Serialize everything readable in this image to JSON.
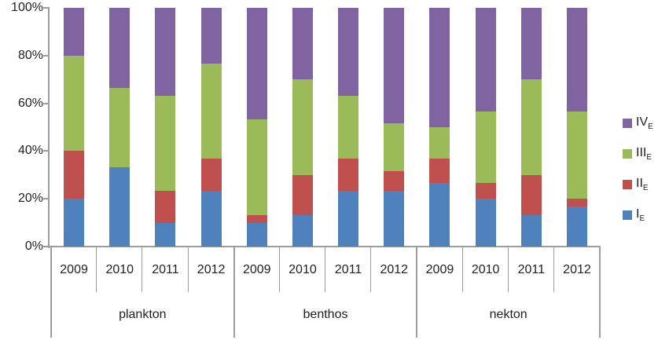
{
  "chart_data": {
    "type": "bar",
    "variant": "stacked-100-percent",
    "title": "",
    "grid": false,
    "y_axis": {
      "tick_labels": [
        "100%",
        "80%",
        "60%",
        "40%",
        "20%",
        "0%"
      ],
      "min": 0,
      "max": 100,
      "unit": "%"
    },
    "x_axis": {
      "groups": [
        "plankton",
        "benthos",
        "nekton"
      ],
      "years_per_group": [
        "2009",
        "2010",
        "2011",
        "2012"
      ]
    },
    "categories": [
      {
        "group": "plankton",
        "year": "2009"
      },
      {
        "group": "plankton",
        "year": "2010"
      },
      {
        "group": "plankton",
        "year": "2011"
      },
      {
        "group": "plankton",
        "year": "2012"
      },
      {
        "group": "benthos",
        "year": "2009"
      },
      {
        "group": "benthos",
        "year": "2010"
      },
      {
        "group": "benthos",
        "year": "2011"
      },
      {
        "group": "benthos",
        "year": "2012"
      },
      {
        "group": "nekton",
        "year": "2009"
      },
      {
        "group": "nekton",
        "year": "2010"
      },
      {
        "group": "nekton",
        "year": "2011"
      },
      {
        "group": "nekton",
        "year": "2012"
      }
    ],
    "series": [
      {
        "name": "I_E",
        "roman": "I",
        "subscript": "E",
        "color": "#4F81BD",
        "values": [
          20,
          33.3,
          10,
          23.3,
          10,
          13.3,
          23.3,
          23.3,
          26.7,
          20,
          13.3,
          16.7
        ]
      },
      {
        "name": "II_E",
        "roman": "II",
        "subscript": "E",
        "color": "#C0504D",
        "values": [
          20,
          0,
          13.3,
          13.4,
          3.3,
          16.7,
          13.4,
          8.3,
          10,
          6.7,
          16.7,
          3.3
        ]
      },
      {
        "name": "III_E",
        "roman": "III",
        "subscript": "E",
        "color": "#9BBB59",
        "values": [
          40,
          33.3,
          40,
          40,
          40,
          40,
          26.6,
          20,
          13.3,
          30,
          40,
          36.7
        ]
      },
      {
        "name": "IV_E",
        "roman": "IV",
        "subscript": "E",
        "color": "#8064A2",
        "values": [
          20,
          33.4,
          36.7,
          23.3,
          46.7,
          30,
          36.7,
          48.4,
          50,
          43.3,
          30,
          43.3
        ]
      }
    ],
    "legend": {
      "position": "right",
      "order_top_to_bottom": [
        "IV_E",
        "III_E",
        "II_E",
        "I_E"
      ]
    }
  },
  "colors": {
    "axis_line": "#9d9d9d",
    "text": "#1f1f1f",
    "background": "#ffffff"
  }
}
